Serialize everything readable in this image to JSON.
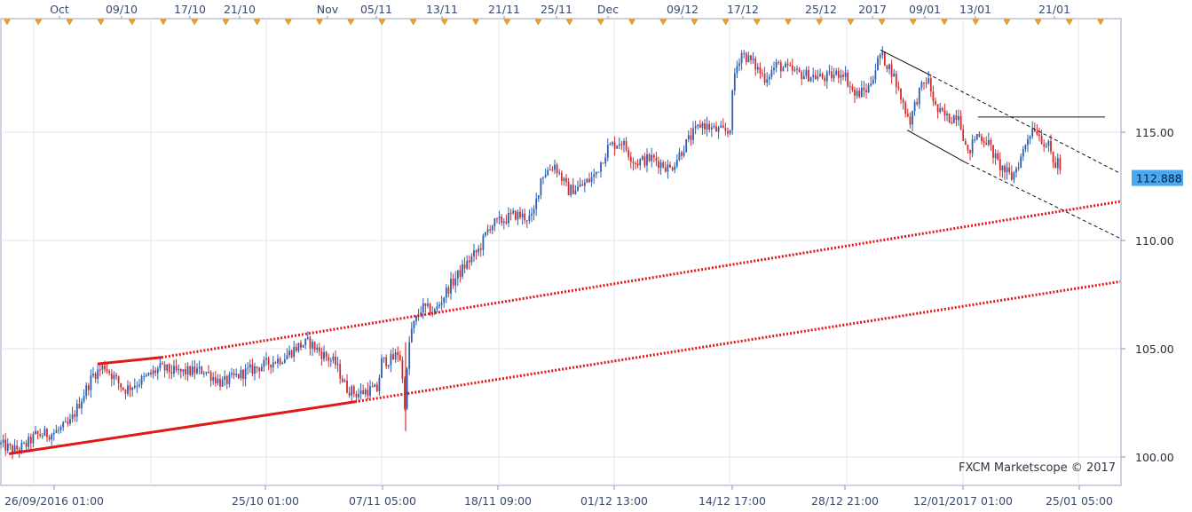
{
  "watermark": "FXCM Marketscope © 2017",
  "chart_data": {
    "type": "candlestick",
    "title": "",
    "xlabel": "",
    "ylabel": "",
    "ylim": [
      99.2,
      120.6
    ],
    "y_ticks": [
      "100.00",
      "105.00",
      "110.00",
      "115.00"
    ],
    "top_axis_labels": [
      "Oct",
      "09/10",
      "17/10",
      "21/10",
      "Nov",
      "05/11",
      "13/11",
      "21/11",
      "25/11",
      "Dec",
      "09/12",
      "17/12",
      "25/12",
      "2017",
      "09/01",
      "13/01",
      "21/01"
    ],
    "bottom_axis_labels": [
      "26/09/2016 01:00",
      "25/10 01:00",
      "07/11 05:00",
      "18/11 09:00",
      "01/12 13:00",
      "14/12 17:00",
      "28/12 21:00",
      "12/01/2017 01:00",
      "25/01 05:00"
    ],
    "current_price": "112.888",
    "price_path": [
      [
        0,
        100.6
      ],
      [
        15,
        100.3
      ],
      [
        28,
        100.5
      ],
      [
        40,
        101.0
      ],
      [
        60,
        101.1
      ],
      [
        78,
        101.5
      ],
      [
        92,
        102.7
      ],
      [
        105,
        103.8
      ],
      [
        118,
        104.2
      ],
      [
        140,
        103.1
      ],
      [
        162,
        103.6
      ],
      [
        180,
        104.1
      ],
      [
        200,
        103.9
      ],
      [
        230,
        104.0
      ],
      [
        250,
        103.4
      ],
      [
        275,
        103.9
      ],
      [
        300,
        104.3
      ],
      [
        320,
        104.6
      ],
      [
        335,
        105.1
      ],
      [
        348,
        105.3
      ],
      [
        362,
        104.8
      ],
      [
        378,
        104.3
      ],
      [
        390,
        103.2
      ],
      [
        402,
        102.9
      ],
      [
        415,
        103.1
      ],
      [
        425,
        103.1
      ],
      [
        430,
        104.4
      ],
      [
        442,
        104.5
      ],
      [
        450,
        104.9
      ],
      [
        456,
        102.5
      ],
      [
        462,
        105.7
      ],
      [
        475,
        106.9
      ],
      [
        490,
        106.7
      ],
      [
        505,
        107.8
      ],
      [
        525,
        108.9
      ],
      [
        540,
        109.6
      ],
      [
        552,
        110.7
      ],
      [
        565,
        110.9
      ],
      [
        580,
        111.2
      ],
      [
        600,
        111.0
      ],
      [
        610,
        113.0
      ],
      [
        625,
        113.5
      ],
      [
        640,
        112.3
      ],
      [
        655,
        112.5
      ],
      [
        670,
        113.0
      ],
      [
        685,
        114.3
      ],
      [
        700,
        114.6
      ],
      [
        715,
        113.6
      ],
      [
        735,
        113.8
      ],
      [
        755,
        113.3
      ],
      [
        775,
        114.6
      ],
      [
        790,
        115.4
      ],
      [
        805,
        115.1
      ],
      [
        822,
        115.0
      ],
      [
        827,
        117.6
      ],
      [
        835,
        118.7
      ],
      [
        848,
        118.2
      ],
      [
        862,
        117.5
      ],
      [
        875,
        118.1
      ],
      [
        900,
        117.7
      ],
      [
        930,
        117.5
      ],
      [
        950,
        117.8
      ],
      [
        963,
        116.7
      ],
      [
        978,
        117.0
      ],
      [
        992,
        118.6
      ],
      [
        1005,
        117.8
      ],
      [
        1015,
        116.6
      ],
      [
        1025,
        115.5
      ],
      [
        1035,
        116.8
      ],
      [
        1045,
        117.5
      ],
      [
        1055,
        116.0
      ],
      [
        1070,
        115.6
      ],
      [
        1080,
        115.9
      ],
      [
        1090,
        113.9
      ],
      [
        1100,
        114.9
      ],
      [
        1112,
        114.6
      ],
      [
        1125,
        113.5
      ],
      [
        1140,
        112.9
      ],
      [
        1150,
        113.8
      ],
      [
        1158,
        114.8
      ],
      [
        1165,
        115.3
      ],
      [
        1175,
        114.6
      ],
      [
        1182,
        114.3
      ],
      [
        1188,
        113.4
      ],
      [
        1192,
        113.7
      ],
      [
        1197,
        112.9
      ]
    ],
    "annotations": {
      "red_channel": [
        {
          "style": "solid",
          "from": [
            10,
            100.15
          ],
          "to": [
            400,
            102.55
          ]
        },
        {
          "style": "solid",
          "from": [
            110,
            104.3
          ],
          "to": [
            182,
            104.6
          ]
        },
        {
          "style": "dotted",
          "from": [
            182,
            104.6
          ],
          "to": [
            1262,
            111.8
          ]
        },
        {
          "style": "dotted",
          "from": [
            400,
            102.55
          ],
          "to": [
            1262,
            108.1
          ]
        }
      ],
      "black_channel": [
        {
          "style": "solid",
          "from": [
            992,
            118.8
          ],
          "to": [
            1045,
            117.7
          ]
        },
        {
          "style": "dotted",
          "from": [
            1045,
            117.7
          ],
          "to": [
            1262,
            113.1
          ]
        },
        {
          "style": "solid",
          "from": [
            1022,
            115.1
          ],
          "to": [
            1088,
            113.6
          ]
        },
        {
          "style": "dotted",
          "from": [
            1088,
            113.6
          ],
          "to": [
            1262,
            110.1
          ]
        },
        {
          "style": "solid",
          "from": [
            1102,
            115.7
          ],
          "to": [
            1245,
            115.7
          ]
        }
      ]
    }
  }
}
